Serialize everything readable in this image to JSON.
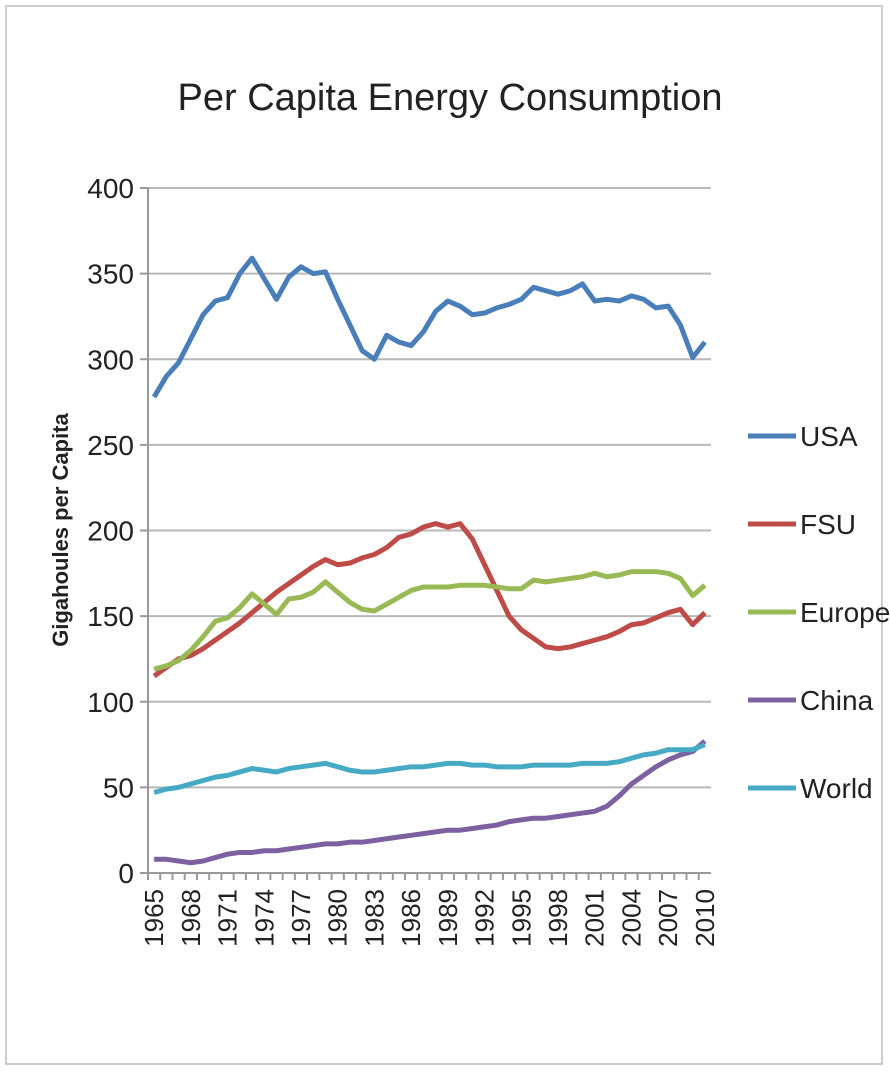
{
  "chart_data": {
    "type": "line",
    "title": "Per Capita Energy Consumption",
    "y_label": "Gigahoules per Capita",
    "categories": [
      "1965",
      null,
      null,
      "1968",
      null,
      null,
      "1971",
      null,
      null,
      "1974",
      null,
      null,
      "1977",
      null,
      null,
      "1980",
      null,
      null,
      "1983",
      null,
      null,
      "1986",
      null,
      null,
      "1989",
      null,
      null,
      "1992",
      null,
      null,
      "1995",
      null,
      null,
      "1998",
      null,
      null,
      "2001",
      null,
      null,
      "2004",
      null,
      null,
      "2007",
      null,
      null,
      "2010"
    ],
    "series": [
      {
        "name": "USA",
        "color": "#4a7ebb",
        "values": [
          278,
          290,
          298,
          312,
          326,
          334,
          336,
          350,
          359,
          347,
          335,
          348,
          354,
          350,
          351,
          335,
          320,
          305,
          300,
          314,
          310,
          308,
          316,
          328,
          334,
          331,
          326,
          327,
          330,
          332,
          335,
          342,
          340,
          338,
          340,
          344,
          334,
          335,
          334,
          337,
          335,
          330,
          331,
          320,
          301,
          310
        ]
      },
      {
        "name": "FSU",
        "color": "#be4b48",
        "values": [
          115,
          120,
          125,
          127,
          131,
          136,
          141,
          146,
          152,
          158,
          164,
          169,
          174,
          179,
          183,
          180,
          181,
          184,
          186,
          190,
          196,
          198,
          202,
          204,
          202,
          204,
          195,
          180,
          165,
          150,
          142,
          137,
          132,
          131,
          132,
          134,
          136,
          138,
          141,
          145,
          146,
          149,
          152,
          154,
          145,
          152
        ]
      },
      {
        "name": "Europe",
        "color": "#98b954",
        "values": [
          119,
          121,
          124,
          130,
          138,
          147,
          149,
          155,
          163,
          157,
          151,
          160,
          161,
          164,
          170,
          164,
          158,
          154,
          153,
          157,
          161,
          165,
          167,
          167,
          167,
          168,
          168,
          168,
          167,
          166,
          166,
          171,
          170,
          171,
          172,
          173,
          175,
          173,
          174,
          176,
          176,
          176,
          175,
          172,
          162,
          168
        ]
      },
      {
        "name": "China",
        "color": "#7d60a0",
        "values": [
          8,
          8,
          7,
          6,
          7,
          9,
          11,
          12,
          12,
          13,
          13,
          14,
          15,
          16,
          17,
          17,
          18,
          18,
          19,
          20,
          21,
          22,
          23,
          24,
          25,
          25,
          26,
          27,
          28,
          30,
          31,
          32,
          32,
          33,
          34,
          35,
          36,
          39,
          45,
          52,
          57,
          62,
          66,
          69,
          71,
          77
        ]
      },
      {
        "name": "World",
        "color": "#46aac5",
        "values": [
          47,
          49,
          50,
          52,
          54,
          56,
          57,
          59,
          61,
          60,
          59,
          61,
          62,
          63,
          64,
          62,
          60,
          59,
          59,
          60,
          61,
          62,
          62,
          63,
          64,
          64,
          63,
          63,
          62,
          62,
          62,
          63,
          63,
          63,
          63,
          64,
          64,
          64,
          65,
          67,
          69,
          70,
          72,
          72,
          72,
          75
        ]
      }
    ],
    "ylim": [
      0,
      400
    ],
    "yticks": [
      0,
      50,
      100,
      150,
      200,
      250,
      300,
      350,
      400
    ],
    "grid": true,
    "legend": "right"
  }
}
